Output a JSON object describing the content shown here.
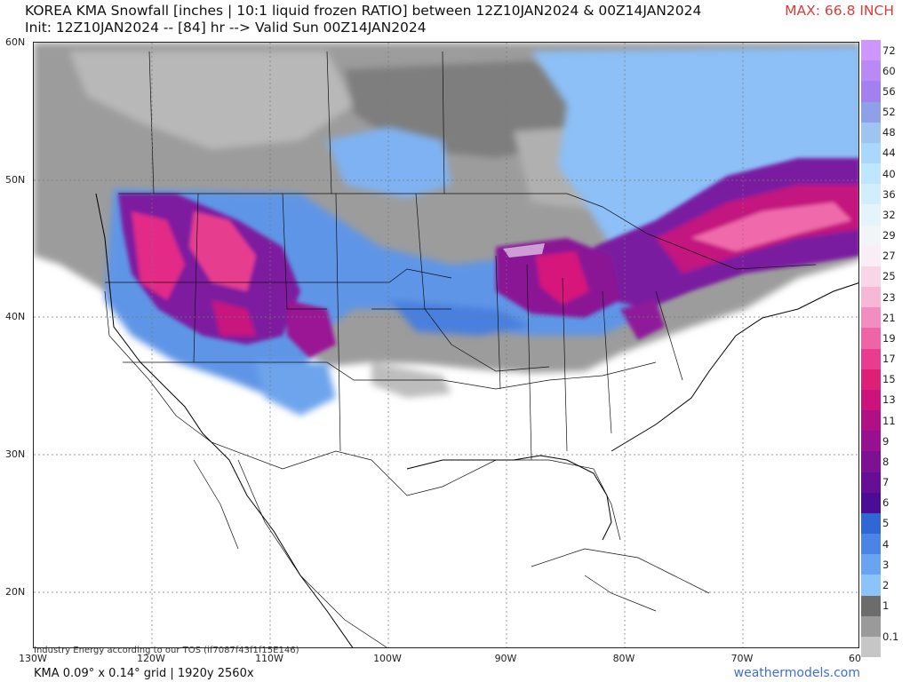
{
  "header": {
    "title_line1": "KOREA KMA Snowfall [inches | 10:1 liquid frozen RATIO] between 12Z10JAN2024 & 00Z14JAN2024",
    "title_line2": "Init: 12Z10JAN2024 -- [84] hr --> Valid Sun 00Z14JAN2024",
    "max_label": "MAX: 66.8 INCH"
  },
  "axes": {
    "lat_labels": [
      "60N",
      "50N",
      "40N",
      "30N",
      "20N"
    ],
    "lon_labels": [
      "130W",
      "120W",
      "110W",
      "100W",
      "90W",
      "80W",
      "70W",
      "60"
    ]
  },
  "legend": {
    "labels": [
      "72",
      "60",
      "56",
      "52",
      "48",
      "44",
      "40",
      "36",
      "32",
      "29",
      "27",
      "25",
      "23",
      "21",
      "19",
      "17",
      "15",
      "13",
      "11",
      "9",
      "8",
      "7",
      "6",
      "5",
      "4",
      "3",
      "2",
      "1",
      "0.1"
    ],
    "colors": [
      "#cf96ff",
      "#b98af5",
      "#a47fef",
      "#8ea0e8",
      "#9fc4f0",
      "#a9d8fb",
      "#bfe6ff",
      "#d2eefb",
      "#e5f3fb",
      "#f1f5f7",
      "#f9eef5",
      "#f9d5e8",
      "#f7b7d6",
      "#f38dbf",
      "#ed64a7",
      "#e73c8f",
      "#de1f77",
      "#cc137b",
      "#b11085",
      "#96108f",
      "#7e1094",
      "#660e96",
      "#4b0c96",
      "#2f67d6",
      "#4a84e6",
      "#6aa3f1",
      "#8bc3fb",
      "#6c6c6c",
      "#9a9a9a",
      "#c6c6c6"
    ]
  },
  "footer": {
    "grid_info": "KMA 0.09° x 0.14° grid | 1920y 2560x",
    "site": "weathermodels.com",
    "disclaimer": "Industry Energy according to our TOS (if7087f43f1f15E146)"
  },
  "map": {
    "projection": "latlon",
    "lon_range": [
      -130,
      -60
    ],
    "lat_range": [
      15,
      60
    ],
    "layer": "snowfall accumulation (inches)"
  }
}
